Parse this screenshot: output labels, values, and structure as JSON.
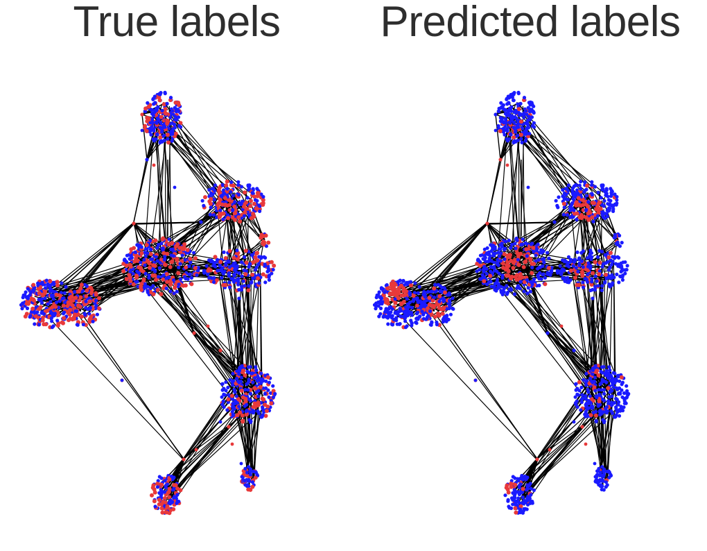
{
  "panels": [
    {
      "title": "True labels",
      "variant": "true"
    },
    {
      "title": "Predicted labels",
      "variant": "pred"
    }
  ],
  "colors": {
    "class_a": "#1a1aff",
    "class_b": "#e8393a",
    "edge": "#000000",
    "title": "#2e2e2e"
  }
}
